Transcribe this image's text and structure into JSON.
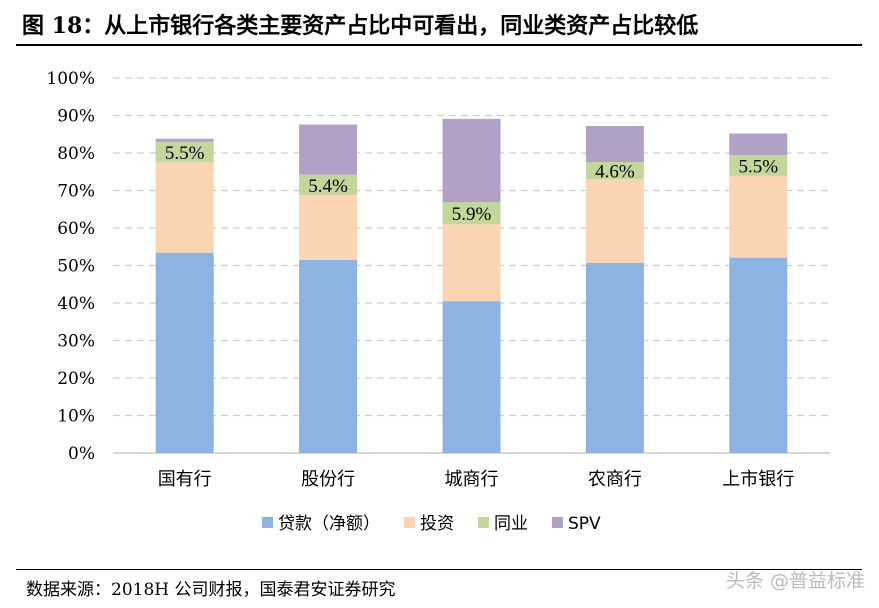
{
  "title": "图 18：从上市银行各类主要资产占比中可看出，同业类资产占比较低",
  "source": "数据来源：2018H 公司财报，国泰君安证券研究",
  "watermark": "头条 @普益标准",
  "chart_data": {
    "type": "bar",
    "stacked": true,
    "categories": [
      "国有行",
      "股份行",
      "城商行",
      "农商行",
      "上市银行"
    ],
    "series": [
      {
        "name": "贷款（净额）",
        "color": "#8DB3E2",
        "values": [
          53.4,
          51.5,
          40.5,
          50.7,
          52.1
        ]
      },
      {
        "name": "投资",
        "color": "#FBD4B4",
        "values": [
          24.1,
          17.3,
          20.5,
          22.3,
          21.8
        ]
      },
      {
        "name": "同业",
        "color": "#C3D69B",
        "values": [
          5.5,
          5.4,
          5.9,
          4.6,
          5.5
        ],
        "data_labels": [
          "5.5%",
          "5.4%",
          "5.9%",
          "4.6%",
          "5.5%"
        ]
      },
      {
        "name": "SPV",
        "color": "#B2A1C7",
        "values": [
          0.8,
          13.4,
          22.2,
          9.6,
          5.8
        ]
      }
    ],
    "ylim": [
      0,
      100
    ],
    "yticks": [
      "0%",
      "10%",
      "20%",
      "30%",
      "40%",
      "50%",
      "60%",
      "70%",
      "80%",
      "90%",
      "100%"
    ],
    "grid": true,
    "legend": "bottom"
  }
}
